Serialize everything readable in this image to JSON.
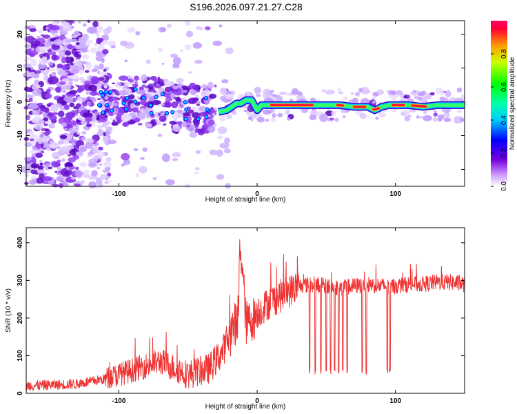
{
  "title": "S196.2026.097.21.27.C28",
  "chart_data": [
    {
      "type": "heatmap",
      "xlabel": "Height of straight line (km)",
      "ylabel": "Frequency (Hz)",
      "xlim": [
        -167,
        150
      ],
      "ylim": [
        -25,
        24
      ],
      "xticks": [
        -100,
        0,
        100
      ],
      "yticks": [
        -20,
        -10,
        0,
        10,
        20
      ],
      "colorbar": {
        "label": "Normalized spectral amplitude",
        "range": [
          0.0,
          1.0
        ],
        "ticks": [
          0.0,
          0.2,
          0.4,
          0.6,
          0.8
        ],
        "tick_labels": [
          "0.0",
          "0.2",
          "0.4",
          "0.6",
          "0.8"
        ]
      },
      "ridge_frequency_hz": {
        "x": [
          -28,
          -22,
          -15,
          -12,
          -8,
          -4,
          0,
          3,
          10,
          30,
          50,
          60,
          70,
          80,
          85,
          90,
          95,
          100,
          110,
          120,
          130,
          150
        ],
        "y": [
          -3,
          -2.5,
          -0.5,
          -0.5,
          0.5,
          0.5,
          -2.5,
          -1,
          -1,
          -1,
          -1,
          -1,
          -1.5,
          -1.5,
          -2.5,
          -1.5,
          -1,
          -1,
          -1,
          -1.5,
          -1,
          -1
        ]
      },
      "hot_segments_km": [
        [
          10,
          40
        ],
        [
          58,
          62
        ],
        [
          70,
          78
        ],
        [
          84,
          88
        ],
        [
          98,
          106
        ],
        [
          112,
          122
        ]
      ]
    },
    {
      "type": "line",
      "xlabel": "Height of straight line (km)",
      "ylabel": "SNR (10 * v/v)",
      "xlim": [
        -167,
        150
      ],
      "ylim": [
        0,
        440
      ],
      "xticks": [
        -100,
        0,
        100
      ],
      "yticks": [
        0,
        100,
        200,
        300,
        400
      ],
      "series": [
        {
          "name": "SNR",
          "color": "#ee3333",
          "x": [
            -167,
            -150,
            -130,
            -110,
            -90,
            -70,
            -50,
            -35,
            -25,
            -18,
            -14,
            -12,
            -8,
            -5,
            -2,
            0,
            10,
            20,
            30,
            40,
            50,
            60,
            70,
            80,
            90,
            100,
            110,
            120,
            130,
            140,
            150
          ],
          "y": [
            20,
            22,
            25,
            38,
            62,
            85,
            50,
            65,
            110,
            170,
            200,
            410,
            185,
            195,
            200,
            215,
            245,
            265,
            285,
            290,
            285,
            280,
            285,
            290,
            285,
            285,
            290,
            290,
            295,
            295,
            290
          ]
        }
      ],
      "dip_positions_km": [
        38,
        42,
        46,
        50,
        53,
        56,
        59,
        62,
        65,
        76,
        79,
        94,
        96
      ],
      "dip_minimum": 50
    }
  ]
}
